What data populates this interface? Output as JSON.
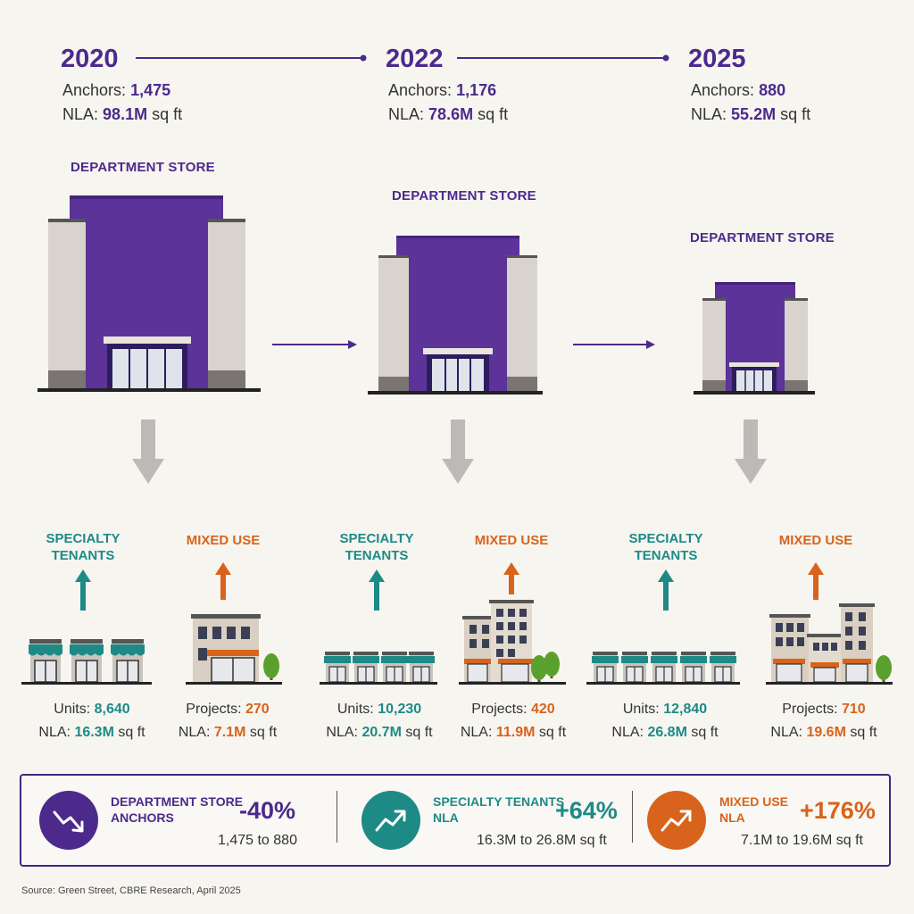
{
  "timeline": [
    {
      "year": "2020",
      "anchors_label": "Anchors:",
      "anchors_value": "1,475",
      "nla_label": "NLA:",
      "nla_value": "98.1M",
      "nla_unit": "sq ft",
      "store_label": "DEPARTMENT STORE"
    },
    {
      "year": "2022",
      "anchors_label": "Anchors:",
      "anchors_value": "1,176",
      "nla_label": "NLA:",
      "nla_value": "78.6M",
      "nla_unit": "sq ft",
      "store_label": "DEPARTMENT STORE"
    },
    {
      "year": "2025",
      "anchors_label": "Anchors:",
      "anchors_value": "880",
      "nla_label": "NLA:",
      "nla_value": "55.2M",
      "nla_unit": "sq ft",
      "store_label": "DEPARTMENT STORE"
    }
  ],
  "outcomes": [
    {
      "specialty": {
        "label": "SPECIALTY TENANTS",
        "units_label": "Units:",
        "units_value": "8,640",
        "nla_label": "NLA:",
        "nla_value": "16.3M",
        "nla_unit": "sq ft"
      },
      "mixed": {
        "label": "MIXED USE",
        "projects_label": "Projects:",
        "projects_value": "270",
        "nla_label": "NLA:",
        "nla_value": "7.1M",
        "nla_unit": "sq ft"
      }
    },
    {
      "specialty": {
        "label": "SPECIALTY TENANTS",
        "units_label": "Units:",
        "units_value": "10,230",
        "nla_label": "NLA:",
        "nla_value": "20.7M",
        "nla_unit": "sq ft"
      },
      "mixed": {
        "label": "MIXED USE",
        "projects_label": "Projects:",
        "projects_value": "420",
        "nla_label": "NLA:",
        "nla_value": "11.9M",
        "nla_unit": "sq ft"
      }
    },
    {
      "specialty": {
        "label": "SPECIALTY TENANTS",
        "units_label": "Units:",
        "units_value": "12,840",
        "nla_label": "NLA:",
        "nla_value": "26.8M",
        "nla_unit": "sq ft"
      },
      "mixed": {
        "label": "MIXED USE",
        "projects_label": "Projects:",
        "projects_value": "710",
        "nla_label": "NLA:",
        "nla_value": "19.6M",
        "nla_unit": "sq ft"
      }
    }
  ],
  "summary": [
    {
      "label_line1": "DEPARTMENT STORE",
      "label_line2": "ANCHORS",
      "pct": "-40%",
      "range": "1,475 to 880",
      "color": "#4b2a8c",
      "icon": "trend-down-icon"
    },
    {
      "label_line1": "SPECIALTY TENANTS",
      "label_line2": "NLA",
      "pct": "+64%",
      "range": "16.3M to 26.8M sq ft",
      "color": "#1e8a86",
      "icon": "trend-up-icon"
    },
    {
      "label_line1": "MIXED USE",
      "label_line2": "NLA",
      "pct": "+176%",
      "range": "7.1M to 19.6M sq ft",
      "color": "#d8631c",
      "icon": "trend-up-icon"
    }
  ],
  "source": "Source: Green Street, CBRE Research, April 2025",
  "colors": {
    "purple": "#4b2a8c",
    "teal": "#1e8a86",
    "orange": "#d8631c",
    "gray_arrow": "#bcbab6"
  }
}
